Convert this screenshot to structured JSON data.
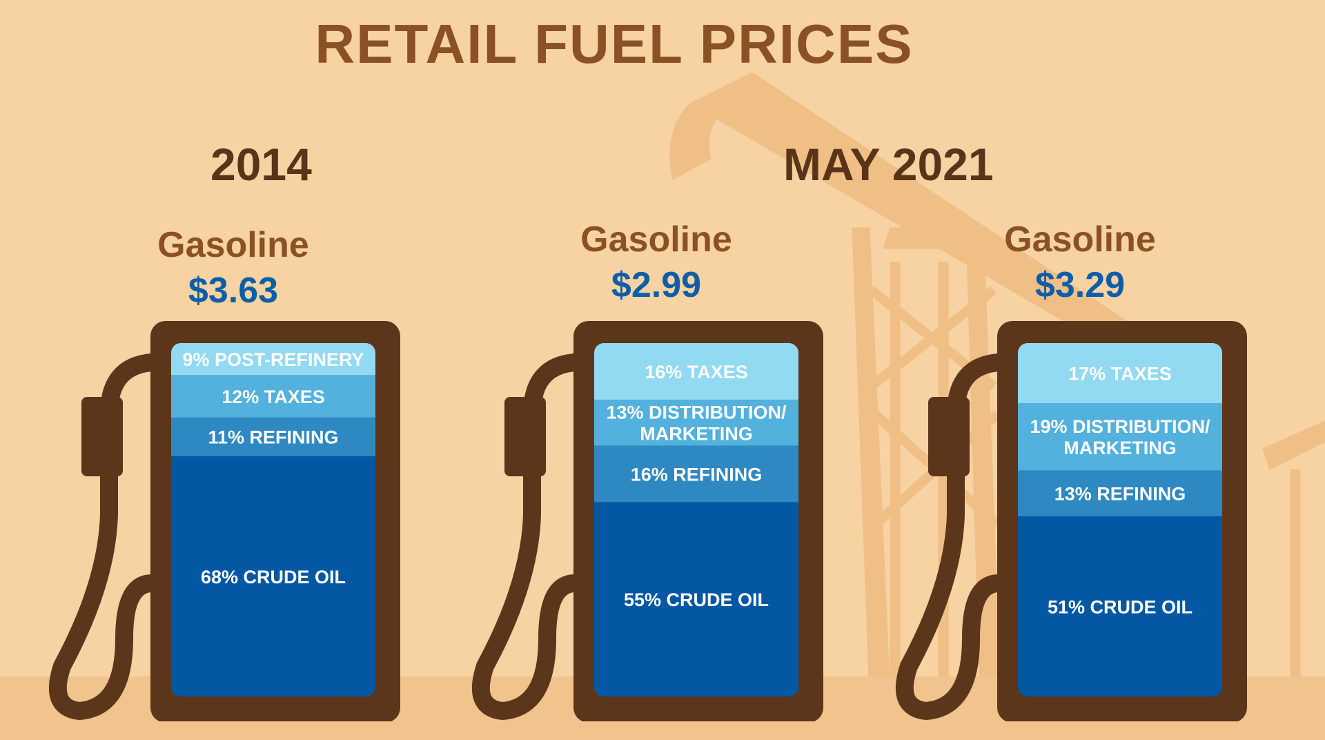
{
  "title": "RETAIL FUEL PRICES",
  "periods": [
    {
      "label": "2014",
      "align_pumps": [
        0
      ]
    },
    {
      "label": "MAY 2021",
      "align_pumps": [
        1,
        2
      ]
    }
  ],
  "colors": {
    "background": "#f7d2a3",
    "derrick": "#efbf86",
    "pump_body": "#5c361b",
    "title": "#8b5126",
    "period": "#5a3419",
    "price": "#0d5ea8",
    "segment_light": "#92d9f2",
    "segment_mid": "#52b1dd",
    "segment_dark": "#2e88c2",
    "segment_crude": "#0458a3"
  },
  "chart_data": {
    "type": "bar",
    "stacked": true,
    "unit": "%",
    "pumps": [
      {
        "fuel": "Gasoline",
        "price": "$3.63",
        "segments": [
          {
            "label": "9% POST-REFINERY",
            "lines": [
              "9% POST-REFINERY"
            ],
            "value": 9,
            "color": "#92d9f2"
          },
          {
            "label": "12% TAXES",
            "lines": [
              "12% TAXES"
            ],
            "value": 12,
            "color": "#52b1dd"
          },
          {
            "label": "11% REFINING",
            "lines": [
              "11% REFINING"
            ],
            "value": 11,
            "color": "#2e88c2"
          },
          {
            "label": "68% CRUDE OIL",
            "lines": [
              "68% CRUDE OIL"
            ],
            "value": 68,
            "color": "#0458a3"
          }
        ]
      },
      {
        "fuel": "Gasoline",
        "price": "$2.99",
        "segments": [
          {
            "label": "16% TAXES",
            "lines": [
              "16% TAXES"
            ],
            "value": 16,
            "color": "#92d9f2"
          },
          {
            "label": "13% DISTRIBUTION/ MARKETING",
            "lines": [
              "13% DISTRIBUTION/",
              "MARKETING"
            ],
            "value": 13,
            "color": "#52b1dd"
          },
          {
            "label": "16% REFINING",
            "lines": [
              "16% REFINING"
            ],
            "value": 16,
            "color": "#2e88c2"
          },
          {
            "label": "55% CRUDE OIL",
            "lines": [
              "55% CRUDE OIL"
            ],
            "value": 55,
            "color": "#0458a3"
          }
        ]
      },
      {
        "fuel": "Gasoline",
        "price": "$3.29",
        "segments": [
          {
            "label": "17% TAXES",
            "lines": [
              "17% TAXES"
            ],
            "value": 17,
            "color": "#92d9f2"
          },
          {
            "label": "19% DISTRIBUTION/ MARKETING",
            "lines": [
              "19% DISTRIBUTION/",
              "MARKETING"
            ],
            "value": 19,
            "color": "#52b1dd"
          },
          {
            "label": "13% REFINING",
            "lines": [
              "13% REFINING"
            ],
            "value": 13,
            "color": "#2e88c2"
          },
          {
            "label": "51% CRUDE OIL",
            "lines": [
              "51% CRUDE OIL"
            ],
            "value": 51,
            "color": "#0458a3"
          }
        ]
      }
    ]
  }
}
